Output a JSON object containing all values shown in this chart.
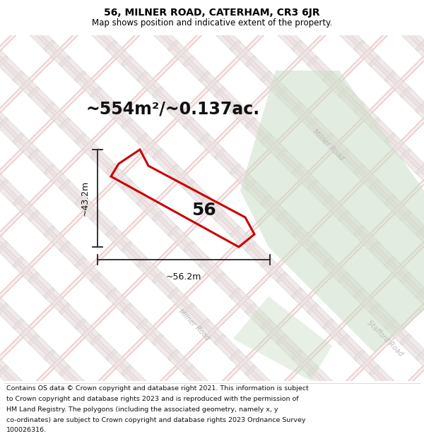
{
  "title": "56, MILNER ROAD, CATERHAM, CR3 6JR",
  "subtitle": "Map shows position and indicative extent of the property.",
  "area_text": "~554m²/~0.137ac.",
  "label_56": "56",
  "dim_width": "~56.2m",
  "dim_height": "~43.2m",
  "footer_lines": [
    "Contains OS data © Crown copyright and database right 2021. This information is subject",
    "to Crown copyright and database rights 2023 and is reproduced with the permission of",
    "HM Land Registry. The polygons (including the associated geometry, namely x, y",
    "co-ordinates) are subject to Crown copyright and database rights 2023 Ordnance Survey",
    "100026316."
  ],
  "map_bg": "#f7f2f2",
  "road_color_main": "#e8c0c0",
  "road_color_light": "#f0d8d8",
  "block_color": "#e0d8d8",
  "block_edge": "#ccbcbc",
  "green_color": "#cddec8",
  "plot_color": "#cc0000",
  "milner_road_color": "#bbbbbb",
  "stafford_road_color": "#bbbbbb",
  "title_fontsize": 10,
  "subtitle_fontsize": 8.5,
  "area_fontsize": 17,
  "label_fontsize": 18,
  "dim_fontsize": 9,
  "road_label_fontsize": 7
}
